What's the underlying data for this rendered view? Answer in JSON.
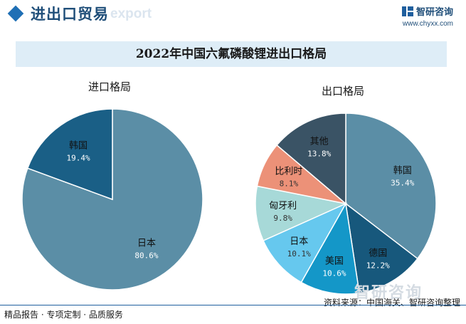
{
  "header": {
    "title": "进出口贸易",
    "watermark": "export",
    "brand_name": "智研咨询",
    "brand_url": "www.chyxx.com"
  },
  "chart_title": "2022年中国六氟磷酸锂进出口格局",
  "colors": {
    "韩国": "#1a5f86",
    "日本": "#5b8ea6",
    "美国": "#1497c8",
    "日本2": "#66c8ee",
    "匈牙利": "#a7d9d8",
    "比利时": "#ec9178",
    "其他": "#3a5365",
    "韩国2": "#5b8ea6",
    "德国": "#17587c"
  },
  "chart_data": [
    {
      "type": "pie",
      "title": "进口格局",
      "slices": [
        {
          "label": "日本",
          "value": 80.6,
          "value_label": "80.6%",
          "color": "#5b8ea6"
        },
        {
          "label": "韩国",
          "value": 19.4,
          "value_label": "19.4%",
          "color": "#1a5f86"
        }
      ]
    },
    {
      "type": "pie",
      "title": "出口格局",
      "slices": [
        {
          "label": "韩国",
          "value": 35.4,
          "value_label": "35.4%",
          "color": "#5b8ea6"
        },
        {
          "label": "德国",
          "value": 12.2,
          "value_label": "12.2%",
          "color": "#17587c"
        },
        {
          "label": "美国",
          "value": 10.6,
          "value_label": "10.6%",
          "color": "#1497c8"
        },
        {
          "label": "日本",
          "value": 10.1,
          "value_label": "10.1%",
          "color": "#66c8ee"
        },
        {
          "label": "匈牙利",
          "value": 9.8,
          "value_label": "9.8%",
          "color": "#a7d9d8"
        },
        {
          "label": "比利时",
          "value": 8.1,
          "value_label": "8.1%",
          "color": "#ec9178"
        },
        {
          "label": "其他",
          "value": 13.8,
          "value_label": "13.8%",
          "color": "#3a5365"
        }
      ]
    }
  ],
  "footer": {
    "left": "精品报告 · 专项定制 · 品质服务",
    "source": "资料来源：中国海关、智研咨询整理",
    "watermark_logo": "智研咨询"
  }
}
